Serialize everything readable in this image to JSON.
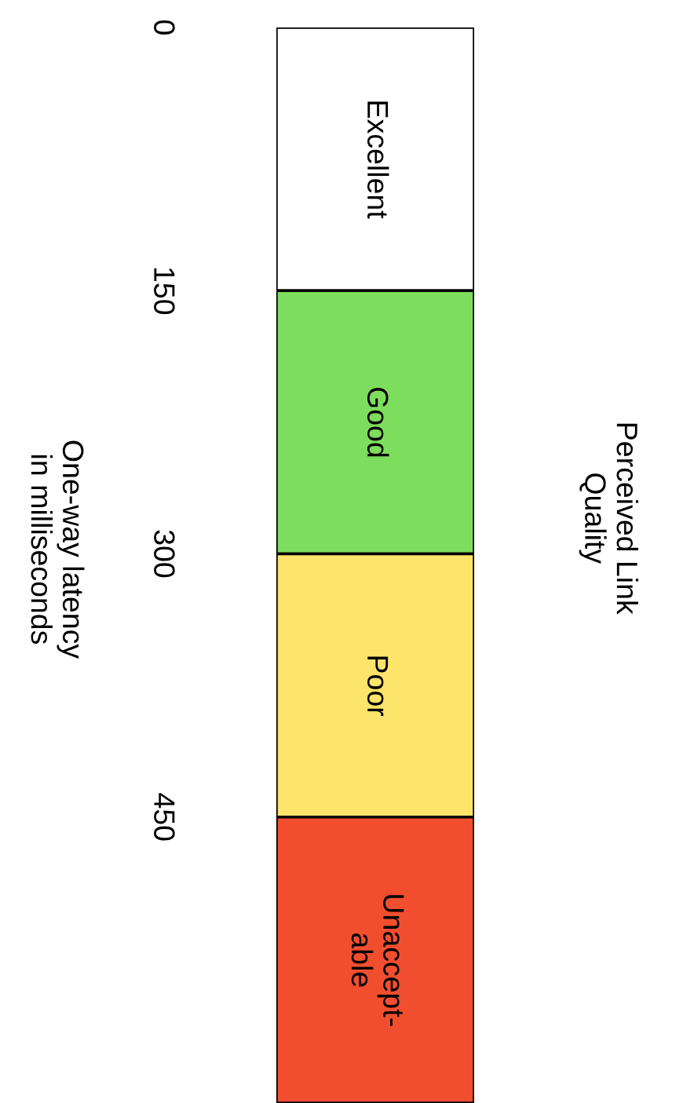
{
  "chart_data": {
    "type": "bar",
    "stacked": true,
    "title": "Perceived Link\nQuality",
    "ylabel": "One-way latency\nin milliseconds",
    "categories": [
      null
    ],
    "series": [
      {
        "name": "Excellent",
        "color": "#ffffff",
        "values": [
          150
        ]
      },
      {
        "name": "Good",
        "color": "#7ddd5d",
        "values": [
          150
        ]
      },
      {
        "name": "Poor",
        "color": "#fde46a",
        "values": [
          150
        ]
      },
      {
        "name": "Unaccept-\nable",
        "color": "#f04e2f",
        "values": [
          163
        ]
      }
    ],
    "ylim": [
      613,
      0
    ],
    "yticks": [
      0,
      150,
      300,
      450
    ],
    "tick_labels": "y"
  }
}
